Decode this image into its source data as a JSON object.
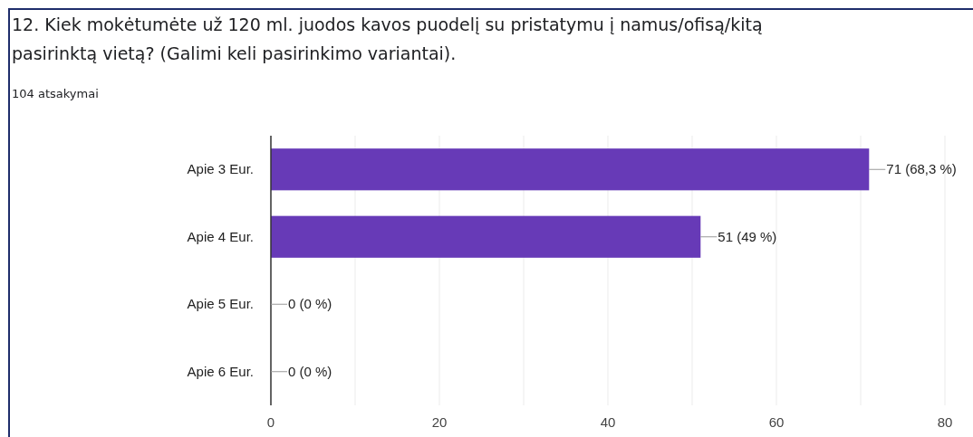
{
  "chart_data": {
    "type": "bar",
    "orientation": "horizontal",
    "title": "12. Kiek mokėtumėte už 120 ml. juodos kavos puodelį su pristatymu į namus/ofisą/kitą pasirinktą vietą? (Galimi keli pasirinkimo variantai).",
    "subtitle": "104 atsakymai",
    "categories": [
      "Apie 3 Eur.",
      "Apie 4 Eur.",
      "Apie 5 Eur.",
      "Apie 6 Eur."
    ],
    "values": [
      71,
      51,
      0,
      0
    ],
    "value_labels": [
      "71 (68,3 %)",
      "51 (49 %)",
      "0 (0 %)",
      "0 (0 %)"
    ],
    "color": "#673ab7",
    "xlim": [
      0,
      80
    ],
    "xticks": [
      0,
      {
        "value": 10,
        "label": null
      },
      20,
      {
        "value": 30,
        "label": null
      },
      40,
      {
        "value": 50,
        "label": null
      },
      60,
      {
        "value": 70,
        "label": null
      },
      80
    ],
    "grid": "x"
  }
}
